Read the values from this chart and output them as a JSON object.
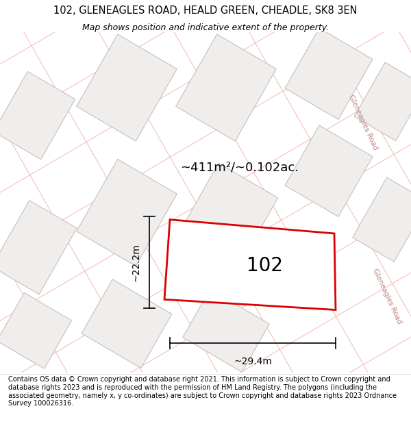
{
  "title": "102, GLENEAGLES ROAD, HEALD GREEN, CHEADLE, SK8 3EN",
  "subtitle": "Map shows position and indicative extent of the property.",
  "footer": "Contains OS data © Crown copyright and database right 2021. This information is subject to Crown copyright and database rights 2023 and is reproduced with the permission of HM Land Registry. The polygons (including the associated geometry, namely x, y co-ordinates) are subject to Crown copyright and database rights 2023 Ordnance Survey 100026316.",
  "area_label": "~411m²/~0.102ac.",
  "plot_number": "102",
  "dim_width": "~29.4m",
  "dim_height": "~22.2m",
  "map_bg": "#f8f6f4",
  "road_line_color": "#f0b8b4",
  "building_fill": "#f0eeec",
  "building_edge": "#c8c0bc",
  "highlight_fill": "#ffffff",
  "highlight_stroke": "#dd0000",
  "road_label_color": "#c08080",
  "title_fontsize": 10.5,
  "subtitle_fontsize": 9,
  "footer_fontsize": 7.0,
  "annotation_fontsize": 10,
  "plot_label_fontsize": 20,
  "area_fontsize": 13
}
